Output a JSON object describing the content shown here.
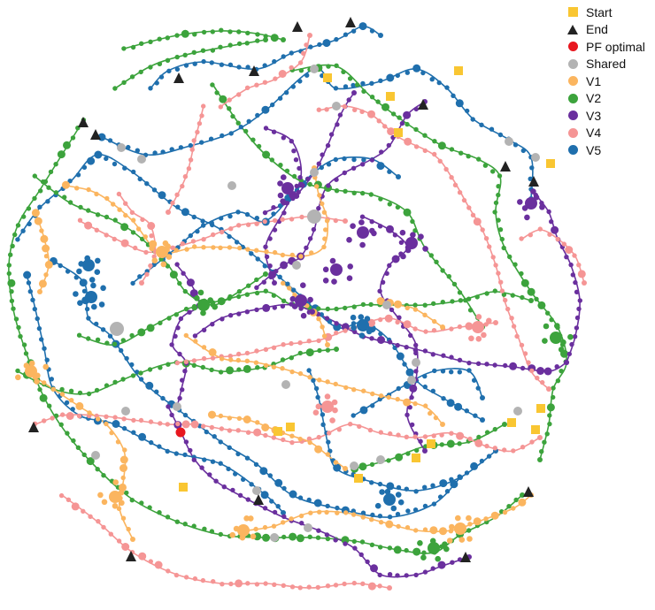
{
  "legend": [
    {
      "label": "Start",
      "marker": "square",
      "color": "#f9c632"
    },
    {
      "label": "End",
      "marker": "triangle",
      "color": "#222222"
    },
    {
      "label": "PF optimal",
      "marker": "circle",
      "color": "#e8171f"
    },
    {
      "label": "Shared",
      "marker": "circle",
      "color": "#b3b3b3"
    },
    {
      "label": "V1",
      "marker": "circle",
      "color": "#fbb55f"
    },
    {
      "label": "V2",
      "marker": "circle",
      "color": "#3ca33c"
    },
    {
      "label": "V3",
      "marker": "circle",
      "color": "#6a2f9e"
    },
    {
      "label": "V4",
      "marker": "circle",
      "color": "#f59595"
    },
    {
      "label": "V5",
      "marker": "circle",
      "color": "#1f6fad"
    }
  ]
}
